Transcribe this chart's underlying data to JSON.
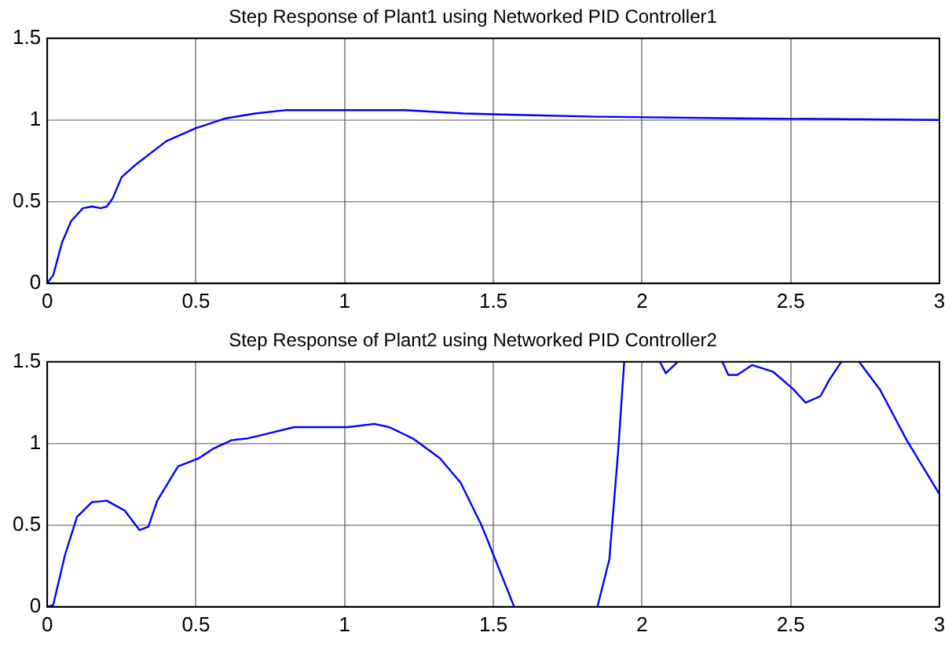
{
  "chart_data": [
    {
      "type": "line",
      "title": "Step Response of Plant1 using Networked PID Controller1",
      "xlim": [
        0,
        3
      ],
      "xticks": [
        0,
        0.5,
        1,
        1.5,
        2,
        2.5,
        3
      ],
      "ylim": [
        0,
        1.5
      ],
      "yticks": [
        0,
        0.5,
        1,
        1.5
      ],
      "grid": true,
      "marker": "none",
      "line_style": "solid",
      "series": [
        {
          "color": "#0000ff",
          "x": [
            0,
            0.02,
            0.05,
            0.08,
            0.12,
            0.15,
            0.18,
            0.2,
            0.22,
            0.25,
            0.3,
            0.35,
            0.4,
            0.5,
            0.6,
            0.7,
            0.8,
            1.0,
            1.2,
            1.4,
            1.6,
            1.85,
            2.33,
            3
          ],
          "values": [
            0,
            0.05,
            0.25,
            0.38,
            0.46,
            0.47,
            0.46,
            0.47,
            0.52,
            0.65,
            0.73,
            0.8,
            0.87,
            0.95,
            1.01,
            1.04,
            1.06,
            1.06,
            1.06,
            1.04,
            1.03,
            1.02,
            1.01,
            1.0
          ]
        }
      ]
    },
    {
      "type": "line",
      "title": "Step Response of Plant2 using Networked PID Controller2",
      "xlim": [
        0,
        3
      ],
      "xticks": [
        0,
        0.5,
        1,
        1.5,
        2,
        2.5,
        3
      ],
      "ylim": [
        0,
        1.5
      ],
      "yticks": [
        0,
        0.5,
        1,
        1.5
      ],
      "grid": true,
      "marker": "none",
      "line_style": "solid",
      "series": [
        {
          "color": "#0000ff",
          "x": [
            0,
            0.02,
            0.06,
            0.1,
            0.15,
            0.2,
            0.26,
            0.31,
            0.34,
            0.37,
            0.44,
            0.51,
            0.56,
            0.62,
            0.67,
            0.74,
            0.83,
            0.92,
            1.01,
            1.1,
            1.15,
            1.23,
            1.32,
            1.39,
            1.46,
            1.5,
            1.57,
            1.7,
            1.85,
            1.89,
            1.92,
            1.94,
            2.0,
            2.06,
            2.08,
            2.12,
            2.2,
            2.27,
            2.29,
            2.32,
            2.37,
            2.44,
            2.51,
            2.55,
            2.6,
            2.63,
            2.67,
            2.7,
            2.73,
            2.8,
            2.89,
            3.0
          ],
          "values": [
            0,
            0.01,
            0.32,
            0.55,
            0.64,
            0.65,
            0.59,
            0.47,
            0.49,
            0.65,
            0.86,
            0.91,
            0.97,
            1.02,
            1.03,
            1.06,
            1.1,
            1.1,
            1.1,
            1.12,
            1.1,
            1.03,
            0.91,
            0.76,
            0.5,
            0.32,
            0,
            null,
            0,
            0.29,
            0.96,
            1.5,
            null,
            1.5,
            1.43,
            1.5,
            null,
            1.5,
            1.42,
            1.42,
            1.48,
            1.44,
            1.33,
            1.25,
            1.29,
            1.39,
            1.5,
            null,
            1.5,
            1.33,
            1.02,
            0.69
          ]
        }
      ]
    }
  ]
}
